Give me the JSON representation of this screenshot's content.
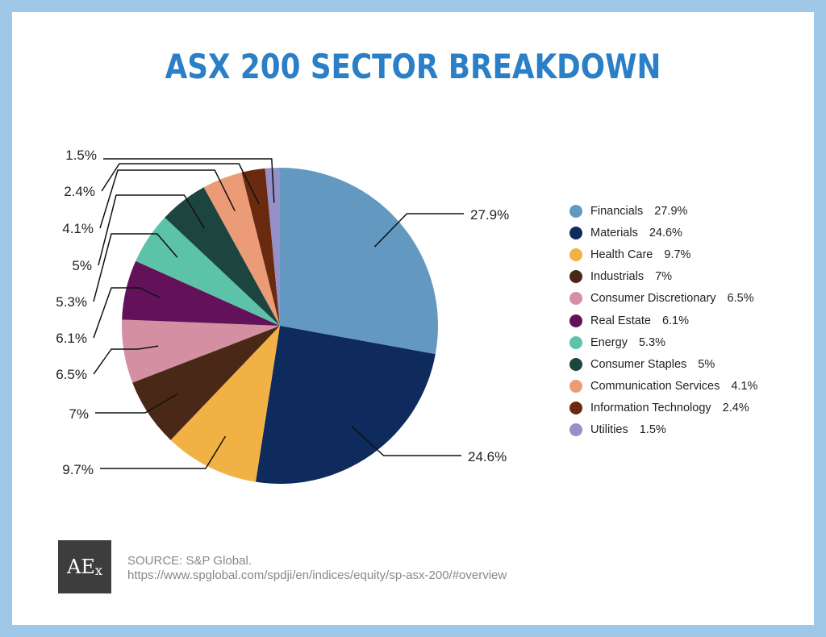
{
  "title": "ASX 200 SECTOR BREAKDOWN",
  "chart_data": {
    "type": "pie",
    "title": "ASX 200 SECTOR BREAKDOWN",
    "legend_position": "right",
    "slices": [
      {
        "label": "Financials",
        "value": 27.9,
        "display": "27.9%",
        "color": "#6399c0"
      },
      {
        "label": "Materials",
        "value": 24.6,
        "display": "24.6%",
        "color": "#0f2a5c"
      },
      {
        "label": "Health Care",
        "value": 9.7,
        "display": "9.7%",
        "color": "#f2b144"
      },
      {
        "label": "Industrials",
        "value": 7,
        "display": "7%",
        "color": "#4a2818"
      },
      {
        "label": "Consumer Discretionary",
        "value": 6.5,
        "display": "6.5%",
        "color": "#d48fa2"
      },
      {
        "label": "Real Estate",
        "value": 6.1,
        "display": "6.1%",
        "color": "#63125a"
      },
      {
        "label": "Energy",
        "value": 5.3,
        "display": "5.3%",
        "color": "#5cc2a8"
      },
      {
        "label": "Consumer Staples",
        "value": 5,
        "display": "5%",
        "color": "#1c4540"
      },
      {
        "label": "Communication Services",
        "value": 4.1,
        "display": "4.1%",
        "color": "#eb9c77"
      },
      {
        "label": "Information Technology",
        "value": 2.4,
        "display": "2.4%",
        "color": "#6a2a10"
      },
      {
        "label": "Utilities",
        "value": 1.5,
        "display": "1.5%",
        "color": "#9490c8"
      }
    ]
  },
  "logo": {
    "main": "AE",
    "sub": "x"
  },
  "source": {
    "line1": "SOURCE: S&P Global.",
    "line2": "https://www.spglobal.com/spdji/en/indices/equity/sp-asx-200/#overview"
  }
}
